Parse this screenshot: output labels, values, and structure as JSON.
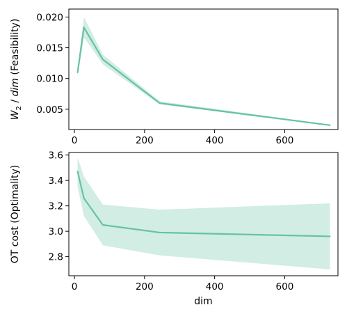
{
  "chart_data": [
    {
      "type": "line",
      "ylabel_var": "W",
      "ylabel_sub": "2",
      "ylabel_rest": " / ",
      "ylabel_dim": "dim",
      "ylabel_suffix": " (Feasibility)",
      "xlabel": "",
      "xlim": [
        -16,
        752
      ],
      "ylim": [
        0.0017,
        0.0213
      ],
      "xticks": [
        0,
        200,
        400,
        600
      ],
      "xtick_labels": [
        "0",
        "200",
        "400",
        "600"
      ],
      "yticks": [
        0.005,
        0.01,
        0.015,
        0.02
      ],
      "ytick_labels": [
        "0.005",
        "0.010",
        "0.015",
        "0.020"
      ],
      "color": "#66c2a5",
      "series": [
        {
          "x": [
            9,
            27,
            81,
            243,
            729
          ],
          "y": [
            0.011,
            0.0183,
            0.0131,
            0.006,
            0.0024
          ],
          "lower": [
            0.0104,
            0.0167,
            0.0123,
            0.0058,
            0.0023
          ],
          "upper": [
            0.0117,
            0.02,
            0.0139,
            0.0063,
            0.0025
          ]
        }
      ]
    },
    {
      "type": "line",
      "ylabel": "OT cost (Optimality)",
      "xlabel": "dim",
      "xlim": [
        -16,
        752
      ],
      "ylim": [
        2.65,
        3.62
      ],
      "xticks": [
        0,
        200,
        400,
        600
      ],
      "xtick_labels": [
        "0",
        "200",
        "400",
        "600"
      ],
      "yticks": [
        2.8,
        3.0,
        3.2,
        3.4,
        3.6
      ],
      "ytick_labels": [
        "2.8",
        "3.0",
        "3.2",
        "3.4",
        "3.6"
      ],
      "color": "#66c2a5",
      "series": [
        {
          "x": [
            9,
            27,
            81,
            243,
            729
          ],
          "y": [
            3.47,
            3.26,
            3.05,
            2.99,
            2.96
          ],
          "lower": [
            3.35,
            3.12,
            2.89,
            2.81,
            2.7
          ],
          "upper": [
            3.58,
            3.43,
            3.21,
            3.17,
            3.22
          ]
        }
      ]
    }
  ]
}
